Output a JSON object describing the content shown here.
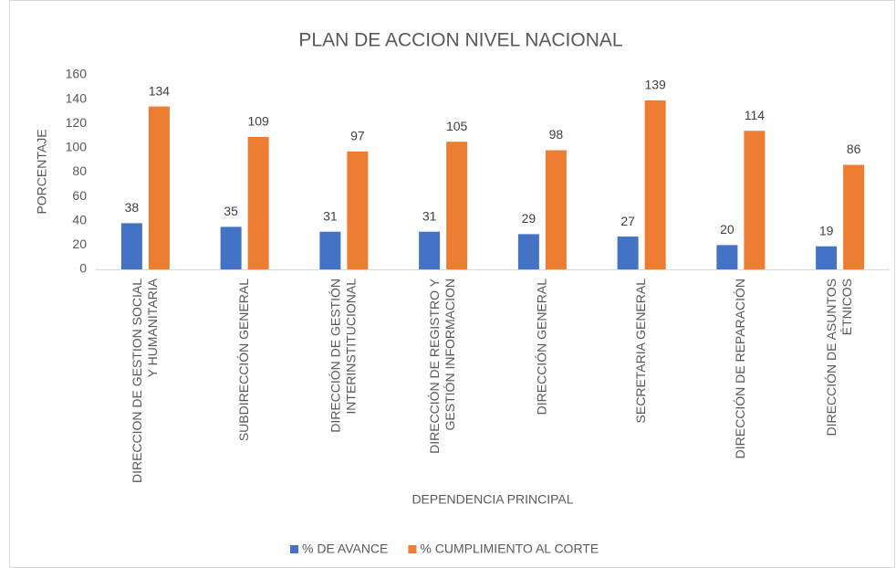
{
  "chart_data": {
    "type": "bar",
    "title": "PLAN DE ACCION NIVEL NACIONAL",
    "x_label": "DEPENDENCIA PRINCIPAL",
    "y_label": "PORCENTAJE",
    "categories": [
      "DIRECCION DE GESTION SOCIAL\nY HUMANITARIA",
      "SUBDIRECCIÓN GENERAL",
      "DIRECCIÓN DE GESTIÓN\nINTERINSTITUCIONAL",
      "DIRECCIÓN DE REGISTRO Y\nGESTIÓN INFORMACION",
      "DIRECCIÓN GENERAL",
      "SECRETARIA GENERAL",
      "DIRECCIÓN DE REPARACIÓN",
      "DIRECCIÓN DE ASUNTOS\nÉTNICOS"
    ],
    "series": [
      {
        "name": "% DE AVANCE",
        "color": "#4472c4",
        "values": [
          38,
          35,
          31,
          31,
          29,
          27,
          20,
          19
        ]
      },
      {
        "name": "% CUMPLIMIENTO AL CORTE",
        "color": "#ed7d31",
        "values": [
          134,
          109,
          97,
          105,
          98,
          139,
          114,
          86
        ]
      }
    ],
    "ylim": [
      0,
      160
    ],
    "yticks": [
      0,
      20,
      40,
      60,
      80,
      100,
      120,
      140,
      160
    ],
    "grid": false,
    "legend": "bottom"
  }
}
